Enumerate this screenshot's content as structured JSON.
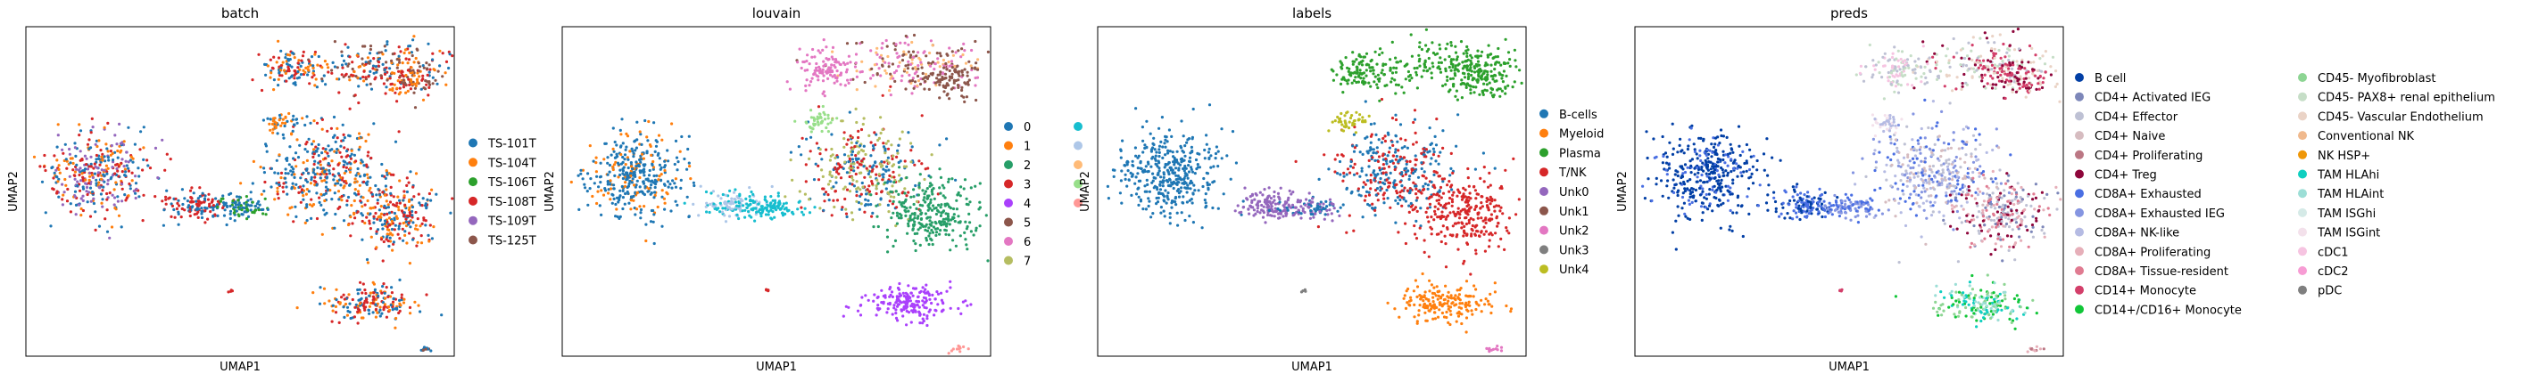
{
  "chart_data": [
    {
      "type": "scatter",
      "title": "batch",
      "xlabel": "UMAP1",
      "ylabel": "UMAP2",
      "grid": false,
      "legend_position": "right",
      "legend": [
        {
          "label": "TS-101T",
          "color": "#1f77b4"
        },
        {
          "label": "TS-104T",
          "color": "#ff7f0e"
        },
        {
          "label": "TS-106T",
          "color": "#2ca02c"
        },
        {
          "label": "TS-108T",
          "color": "#d62728"
        },
        {
          "label": "TS-109T",
          "color": "#9467bd"
        },
        {
          "label": "TS-125T",
          "color": "#8c564b"
        }
      ]
    },
    {
      "type": "scatter",
      "title": "louvain",
      "xlabel": "UMAP1",
      "ylabel": "UMAP2",
      "grid": false,
      "legend_position": "right",
      "legend": [
        {
          "label": "0",
          "color": "#1f77b4"
        },
        {
          "label": "1",
          "color": "#ff7f0e"
        },
        {
          "label": "2",
          "color": "#279e68"
        },
        {
          "label": "3",
          "color": "#d62728"
        },
        {
          "label": "4",
          "color": "#aa40fc"
        },
        {
          "label": "5",
          "color": "#8c564b"
        },
        {
          "label": "6",
          "color": "#e377c2"
        },
        {
          "label": "7",
          "color": "#b5bd61"
        },
        {
          "label": "",
          "color": "#17becf"
        },
        {
          "label": "",
          "color": "#aec7e8"
        },
        {
          "label": "",
          "color": "#ffbb78"
        },
        {
          "label": "",
          "color": "#98df8a"
        },
        {
          "label": "",
          "color": "#ff9896"
        }
      ]
    },
    {
      "type": "scatter",
      "title": "labels",
      "xlabel": "UMAP1",
      "ylabel": "UMAP2",
      "grid": false,
      "legend_position": "right",
      "legend": [
        {
          "label": "B-cells",
          "color": "#1f77b4"
        },
        {
          "label": "Myeloid",
          "color": "#ff7f0e"
        },
        {
          "label": "Plasma",
          "color": "#2ca02c"
        },
        {
          "label": "T/NK",
          "color": "#d62728"
        },
        {
          "label": "Unk0",
          "color": "#9467bd"
        },
        {
          "label": "Unk1",
          "color": "#8c564b"
        },
        {
          "label": "Unk2",
          "color": "#e377c2"
        },
        {
          "label": "Unk3",
          "color": "#7f7f7f"
        },
        {
          "label": "Unk4",
          "color": "#bcbd22"
        }
      ]
    },
    {
      "type": "scatter",
      "title": "preds",
      "xlabel": "UMAP1",
      "ylabel": "UMAP2",
      "grid": false,
      "legend_position": "right",
      "legend": [
        {
          "label": "B cell",
          "color": "#023fa5"
        },
        {
          "label": "CD4+ Activated IEG",
          "color": "#7d87b9"
        },
        {
          "label": "CD4+ Effector",
          "color": "#bec1d4"
        },
        {
          "label": "CD4+ Naive",
          "color": "#d6bcc0"
        },
        {
          "label": "CD4+ Proliferating",
          "color": "#bb7784"
        },
        {
          "label": "CD4+ Treg",
          "color": "#8e063b"
        },
        {
          "label": "CD8A+ Exhausted",
          "color": "#4a6fe3"
        },
        {
          "label": "CD8A+ Exhausted IEG",
          "color": "#8595e1"
        },
        {
          "label": "CD8A+ NK-like",
          "color": "#b5bbe3"
        },
        {
          "label": "CD8A+ Proliferating",
          "color": "#e6afb9"
        },
        {
          "label": "CD8A+ Tissue-resident",
          "color": "#e07b91"
        },
        {
          "label": "CD14+ Monocyte",
          "color": "#d33f6a"
        },
        {
          "label": "CD14+/CD16+ Monocyte",
          "color": "#11c638"
        },
        {
          "label": "CD45- Myofibroblast",
          "color": "#8dd593"
        },
        {
          "label": "CD45- PAX8+ renal epithelium",
          "color": "#c6dec7"
        },
        {
          "label": "CD45- Vascular Endothelium",
          "color": "#ead3c6"
        },
        {
          "label": "Conventional NK",
          "color": "#f0b98d"
        },
        {
          "label": "NK HSP+",
          "color": "#ef9708"
        },
        {
          "label": "TAM HLAhi",
          "color": "#0fcfc0"
        },
        {
          "label": "TAM HLAint",
          "color": "#9cded6"
        },
        {
          "label": "TAM ISGhi",
          "color": "#d5eae7"
        },
        {
          "label": "TAM ISGint",
          "color": "#f3e1eb"
        },
        {
          "label": "cDC1",
          "color": "#f6c4e1"
        },
        {
          "label": "cDC2",
          "color": "#f79cd4"
        },
        {
          "label": "pDC",
          "color": "#7f7f7f"
        }
      ]
    }
  ]
}
